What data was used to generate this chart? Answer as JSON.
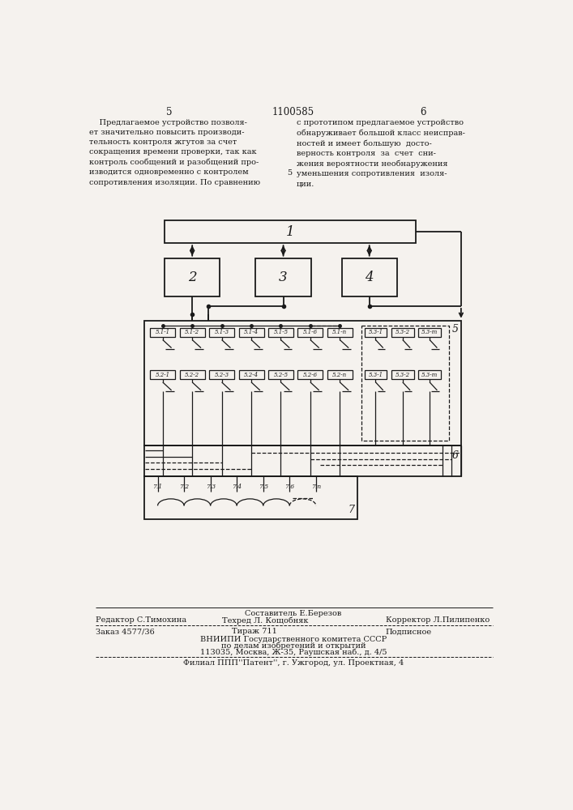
{
  "bg_color": "#f5f2ee",
  "text_color": "#1a1a1a",
  "page_header": "1100585",
  "page_left": "5",
  "page_right": "6",
  "text_left": "    Предлагаемое устройство позволя-\nет значительно повысить производи-\nтельность контроля жгутов за счет\nсокращения времени проверки, так как\nконтроль сообщений и разобщений про-\nизводится одновременно с контролем\nсопротивления изоляции. По сравнению",
  "text_right": "с прототипом предлагаемое устройство\nобнаруживает большой класс неисправ-\nностей и имеет большую  досто-\nверность контроля  за  счет  сни-\nжения вероятности необнаружения\nуменьшения сопротивления  изоля-\nции.",
  "footer_line1_center": "Составитель Е.Березов",
  "footer_editor": "Редактор С.Тимохина",
  "footer_tech": "Техред Л. Кощобняк",
  "footer_corrector": "Корректор Л.Пилипенко",
  "footer_order": "Заказ 4577/36",
  "footer_tirazh": "Тираж 711",
  "footer_podpisnoe": "Подписное",
  "footer_vniip": "ВНИИПИ Государственного комитета СССР",
  "footer_po": "по делам изобретений и открытий",
  "footer_addr": "113035, Москва, Ж-35, Раушская наб., д. 4/5",
  "footer_filial": "Филиал ППП''Патент'', г. Ужгород, ул. Проектная, 4",
  "sw1_labels": [
    "5.1-1",
    "5.1-2",
    "5.1-3",
    "5.1-4",
    "5.1-5",
    "5.1-6",
    "5.1-n"
  ],
  "sw2_labels": [
    "5.2-1",
    "5.2-2",
    "5.2-3",
    "5.2-4",
    "5.2-5",
    "5.2-6",
    "5.2-n"
  ],
  "sw3_labels": [
    "5.3-1",
    "5.3-2",
    "5.3-m"
  ],
  "arc_labels": [
    "7.1",
    "7.2",
    "7.3",
    "7.4",
    "7.5",
    "7.6",
    "7.n"
  ]
}
